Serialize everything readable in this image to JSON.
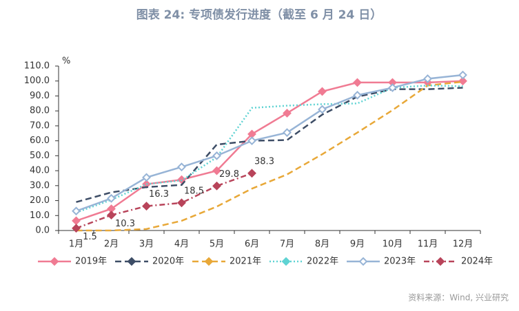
{
  "chart_data": {
    "type": "line",
    "title": "图表 24: 专项债发行进度（截至 6 月 24 日）",
    "y_label": "%",
    "source": "资料来源：Wind, 兴业研究",
    "categories": [
      "1月",
      "2月",
      "3月",
      "4月",
      "5月",
      "6月",
      "7月",
      "8月",
      "9月",
      "10月",
      "11月",
      "12月"
    ],
    "ylim": [
      0,
      110
    ],
    "yticks": [
      {
        "value": 0,
        "label": "0.0"
      },
      {
        "value": 10,
        "label": "10.0"
      },
      {
        "value": 20,
        "label": "20.0"
      },
      {
        "value": 30,
        "label": "30.0"
      },
      {
        "value": 40,
        "label": "40.0"
      },
      {
        "value": 50,
        "label": "50.0"
      },
      {
        "value": 60,
        "label": "60.0"
      },
      {
        "value": 70,
        "label": "70.0"
      },
      {
        "value": 80,
        "label": "80.0"
      },
      {
        "value": 90,
        "label": "90.0"
      },
      {
        "value": 100,
        "label": "100.0"
      },
      {
        "value": 110,
        "label": "110.0"
      }
    ],
    "grid": false,
    "series": [
      {
        "name": "2019年",
        "color": "#f07b93",
        "style": "solid",
        "marker": "filled",
        "values": [
          6.5,
          14.5,
          31,
          34,
          40,
          64.5,
          78.5,
          93,
          99,
          99,
          99,
          100
        ]
      },
      {
        "name": "2020年",
        "color": "#3d4d66",
        "style": "dash",
        "marker": "none",
        "values": [
          19,
          25.5,
          29,
          30.5,
          57.5,
          60,
          60.5,
          77.5,
          89.5,
          94.5,
          94.5,
          95.5
        ]
      },
      {
        "name": "2021年",
        "color": "#e8a838",
        "style": "dash",
        "marker": "none",
        "values": [
          0,
          0,
          1,
          6.5,
          16,
          28,
          37.5,
          51,
          65.5,
          80.5,
          97,
          99.5
        ]
      },
      {
        "name": "2022年",
        "color": "#5fd3d3",
        "style": "dot",
        "marker": "none",
        "values": [
          12,
          20.5,
          31,
          33.5,
          49,
          82,
          83.5,
          84.5,
          85,
          95.5,
          97,
          96.5
        ]
      },
      {
        "name": "2023年",
        "color": "#97b4d6",
        "style": "solid",
        "marker": "hollow",
        "values": [
          13,
          21.5,
          35.5,
          42.5,
          50,
          60,
          65.5,
          81,
          90.5,
          95.5,
          101.5,
          104
        ]
      },
      {
        "name": "2024年",
        "color": "#b8445a",
        "style": "dashdot",
        "marker": "filled",
        "labels": true,
        "values": [
          1.5,
          10.3,
          16.3,
          18.5,
          29.8,
          38.3,
          null,
          null,
          null,
          null,
          null,
          null
        ]
      }
    ]
  }
}
